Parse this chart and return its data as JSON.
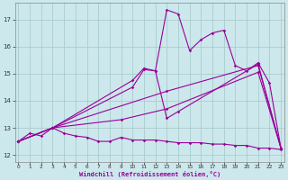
{
  "xlabel": "Windchill (Refroidissement éolien,°C)",
  "bg_color": "#cce8ec",
  "grid_color": "#aacccc",
  "line_color": "#990099",
  "x_ticks": [
    0,
    1,
    2,
    3,
    4,
    5,
    6,
    7,
    8,
    9,
    10,
    11,
    12,
    13,
    14,
    15,
    16,
    17,
    18,
    19,
    20,
    21,
    22,
    23
  ],
  "y_ticks": [
    12,
    13,
    14,
    15,
    16,
    17
  ],
  "xlim": [
    -0.3,
    23.3
  ],
  "ylim": [
    11.75,
    17.6
  ],
  "lines": [
    {
      "x": [
        0,
        1,
        2,
        3,
        4,
        5,
        6,
        7,
        8,
        9,
        10,
        11,
        12,
        13,
        14,
        15,
        16,
        17,
        18,
        19,
        20,
        21,
        22,
        23
      ],
      "y": [
        12.5,
        12.8,
        12.7,
        13.0,
        12.8,
        12.7,
        12.65,
        12.5,
        12.5,
        12.65,
        12.55,
        12.55,
        12.55,
        12.5,
        12.45,
        12.45,
        12.45,
        12.4,
        12.4,
        12.35,
        12.35,
        12.25,
        12.25,
        12.2
      ],
      "ls": "-",
      "marker": true
    },
    {
      "x": [
        0,
        3,
        10,
        11,
        12,
        13,
        14,
        15,
        16,
        17,
        18,
        19,
        20,
        21,
        22,
        23
      ],
      "y": [
        12.5,
        13.0,
        14.75,
        15.2,
        15.1,
        17.35,
        17.2,
        15.85,
        16.25,
        16.5,
        16.6,
        15.3,
        15.1,
        15.4,
        14.65,
        12.25
      ],
      "ls": "-",
      "marker": true
    },
    {
      "x": [
        0,
        3,
        10,
        11,
        12,
        13,
        14,
        21,
        23
      ],
      "y": [
        12.5,
        13.0,
        14.5,
        15.15,
        15.1,
        13.35,
        13.6,
        15.35,
        12.25
      ],
      "ls": "-",
      "marker": true
    },
    {
      "x": [
        0,
        3,
        13,
        21,
        23
      ],
      "y": [
        12.5,
        13.0,
        14.35,
        15.3,
        12.25
      ],
      "ls": "-",
      "marker": true
    },
    {
      "x": [
        0,
        3,
        9,
        13,
        21,
        23
      ],
      "y": [
        12.5,
        13.0,
        13.3,
        13.7,
        15.05,
        12.25
      ],
      "ls": "-",
      "marker": true
    }
  ]
}
